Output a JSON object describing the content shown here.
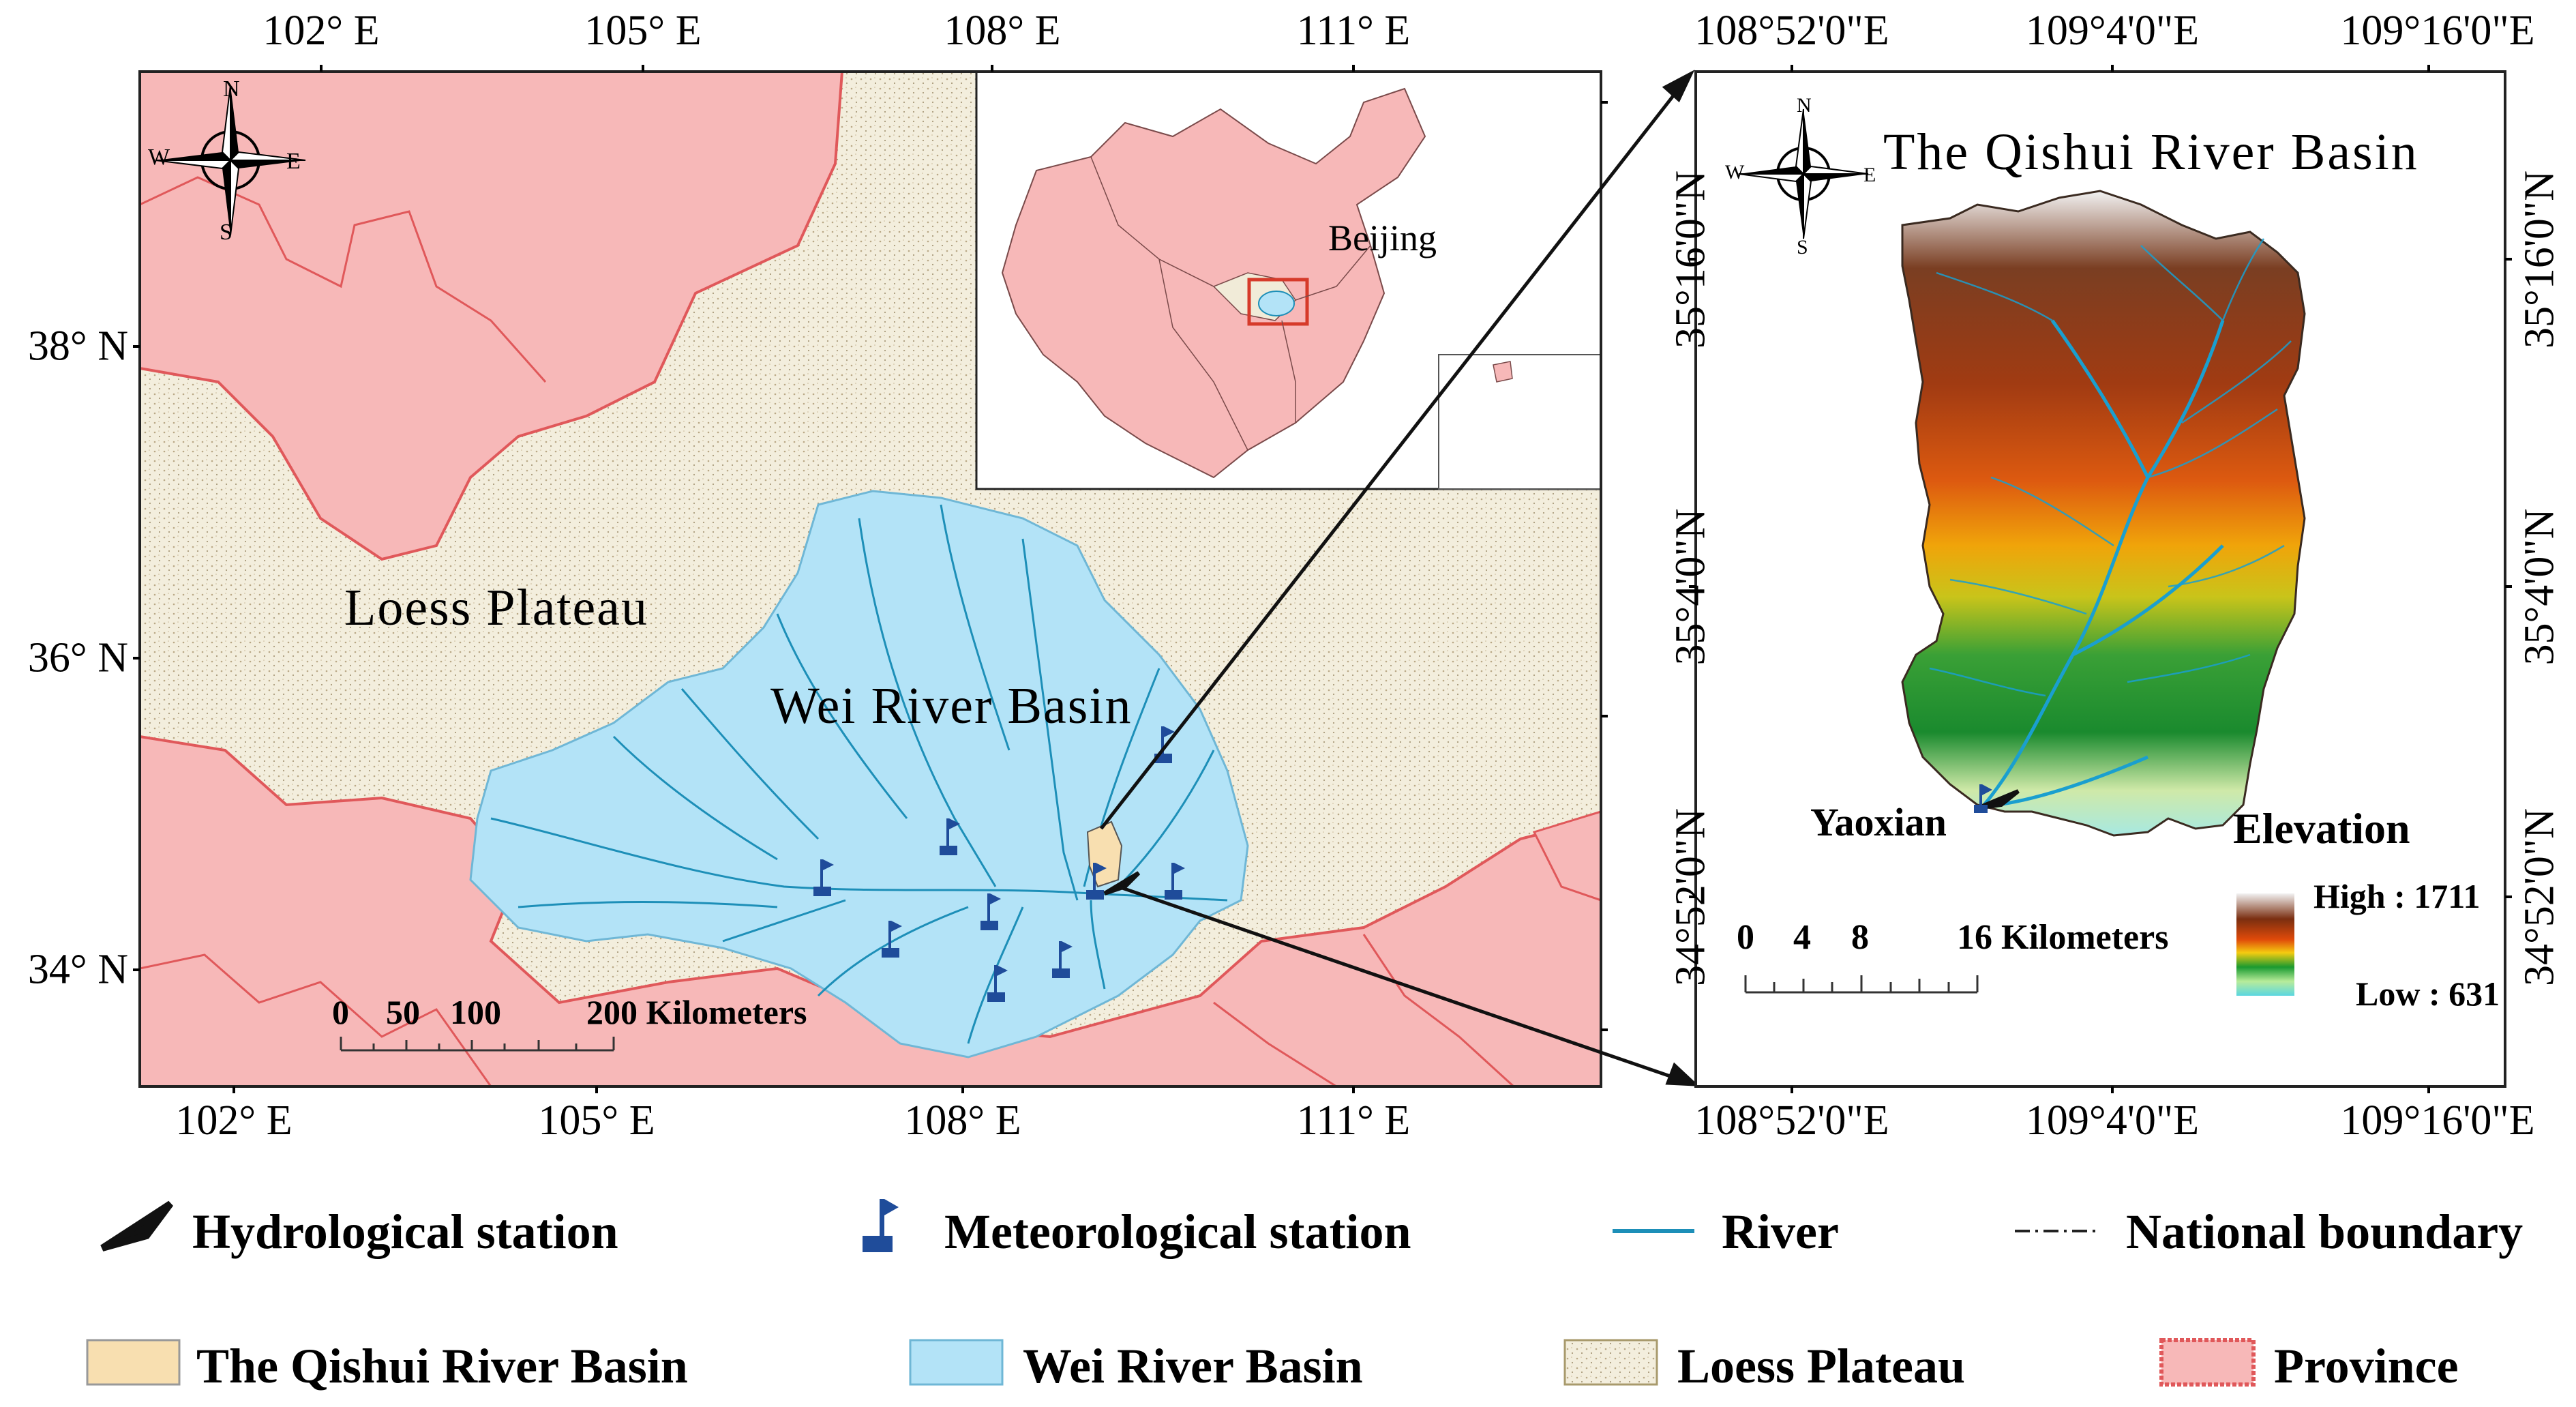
{
  "left_map": {
    "x_ticks": [
      "102° E",
      "105° E",
      "108° E",
      "111° E"
    ],
    "y_ticks": [
      "38° N",
      "36° N",
      "34° N"
    ],
    "compass": {
      "n": "N",
      "s": "S",
      "e": "E",
      "w": "W"
    },
    "labels": {
      "loess": "Loess Plateau",
      "wei": "Wei River Basin"
    },
    "scale": {
      "values": [
        "0",
        "50",
        "100",
        "200 Kilometers"
      ]
    },
    "inset": {
      "city": "Beijing"
    }
  },
  "right_map": {
    "title": "The Qishui River Basin",
    "x_ticks": [
      "108°52'0\"E",
      "109°4'0\"E",
      "109°16'0\"E"
    ],
    "y_ticks": [
      "35°16'0\"N",
      "35°4'0\"N",
      "34°52'0\"N"
    ],
    "compass": {
      "n": "N",
      "s": "S",
      "e": "E",
      "w": "W"
    },
    "station": "Yaoxian",
    "elevation": {
      "title": "Elevation",
      "high": "High : 1711",
      "low": "Low : 631"
    },
    "scale": {
      "values": [
        "0",
        "4",
        "8",
        "16 Kilometers"
      ]
    }
  },
  "legend": {
    "items": [
      {
        "label": "Hydrological station",
        "icon": "hydrological-station-icon"
      },
      {
        "label": "Meteorological station",
        "icon": "meteorological-station-icon"
      },
      {
        "label": "River",
        "icon": "river-line-icon"
      },
      {
        "label": "National boundary",
        "icon": "national-boundary-icon"
      },
      {
        "label": "The Qishui River Basin",
        "icon": "qishui-basin-swatch"
      },
      {
        "label": "Wei River Basin",
        "icon": "wei-basin-swatch"
      },
      {
        "label": "Loess Plateau",
        "icon": "loess-plateau-swatch"
      },
      {
        "label": "Province",
        "icon": "province-swatch"
      }
    ]
  },
  "colors": {
    "province": "#f7b8b8",
    "province_border": "#e0585a",
    "loess": "#f1ebd8",
    "wei": "#b3e3f7",
    "river": "#1d8fb8",
    "qishui": "#f8dfb0",
    "station": "#1f4c9a",
    "inset_frame": "#d63a2a"
  }
}
